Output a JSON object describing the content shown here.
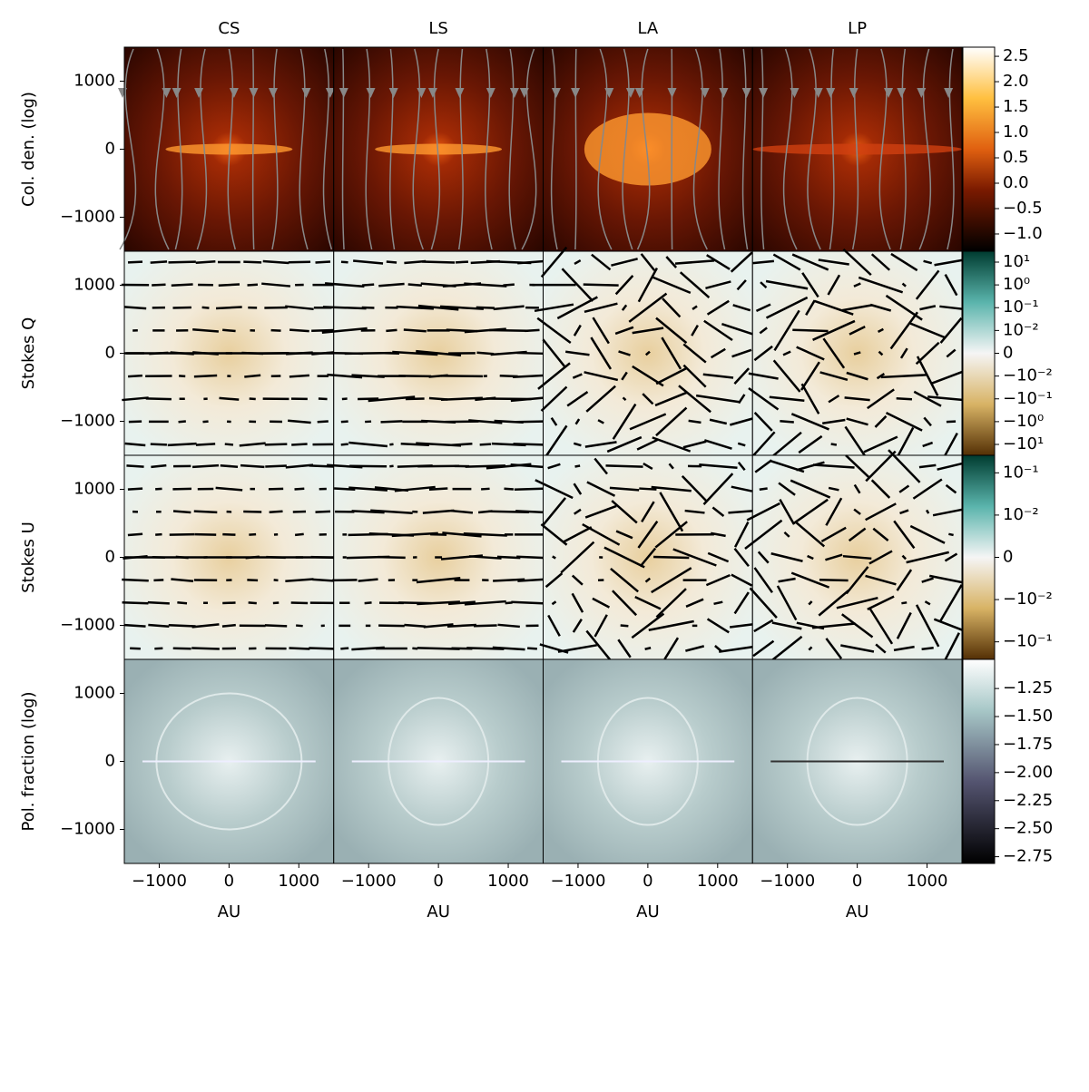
{
  "chart_data": {
    "type": "heatmap",
    "columns": [
      "CS",
      "LS",
      "LA",
      "LP"
    ],
    "xlabel": "AU",
    "xlim": [
      -1500,
      1500
    ],
    "ylim": [
      -1500,
      1500
    ],
    "xticks": [
      {
        "value": -1000,
        "label": "−1000"
      },
      0,
      1000
    ],
    "yticks": [
      {
        "value": -1000,
        "label": "−1000"
      },
      0,
      1000
    ],
    "rows": [
      {
        "label": "Col. den. (log)",
        "cmap": "afmhot",
        "scale": "linear",
        "clim": [
          -1.34,
          2.68
        ],
        "ticks": [
          {
            "value": -1.0,
            "label": "−1.0"
          },
          {
            "value": -0.5,
            "label": "−0.5"
          },
          {
            "value": 0.0,
            "label": "0.0"
          },
          {
            "value": 0.5,
            "label": "0.5"
          },
          {
            "value": 1.0,
            "label": "1.0"
          },
          {
            "value": 1.5,
            "label": "1.5"
          },
          {
            "value": 2.0,
            "label": "2.0"
          },
          {
            "value": 2.5,
            "label": "2.5"
          }
        ]
      },
      {
        "label": "Stokes Q",
        "cmap": "BrBG",
        "scale": "symlog",
        "linthresh": 0.01,
        "clim": [
          -30,
          30
        ],
        "ticks": [
          {
            "value": -10,
            "label": "−10¹"
          },
          {
            "value": -1,
            "label": "−10⁰"
          },
          {
            "value": -0.1,
            "label": "−10⁻¹"
          },
          {
            "value": -0.01,
            "label": "−10⁻²"
          },
          0,
          {
            "value": 0.01,
            "label": "10⁻²"
          },
          {
            "value": 0.1,
            "label": "10⁻¹"
          },
          {
            "value": 1,
            "label": "10⁰"
          },
          {
            "value": 10,
            "label": "10¹"
          }
        ]
      },
      {
        "label": "Stokes U",
        "cmap": "BrBG",
        "scale": "symlog",
        "linthresh": 0.01,
        "clim": [
          -0.26,
          0.26
        ],
        "ticks": [
          {
            "value": -0.1,
            "label": "−10⁻¹"
          },
          {
            "value": -0.01,
            "label": "−10⁻²"
          },
          0,
          {
            "value": 0.01,
            "label": "10⁻²"
          },
          {
            "value": 0.1,
            "label": "10⁻¹"
          }
        ]
      },
      {
        "label": "Pol. fraction (log)",
        "cmap": "bone",
        "scale": "linear",
        "clim": [
          -2.81,
          -0.99
        ],
        "ticks": [
          {
            "value": -2.75,
            "label": "−2.75"
          },
          {
            "value": -2.5,
            "label": "−2.50"
          },
          {
            "value": -2.25,
            "label": "−2.25"
          },
          {
            "value": -2.0,
            "label": "−2.00"
          },
          {
            "value": -1.75,
            "label": "−1.75"
          },
          {
            "value": -1.5,
            "label": "−1.50"
          },
          {
            "value": -1.25,
            "label": "−1.25"
          }
        ]
      }
    ]
  }
}
